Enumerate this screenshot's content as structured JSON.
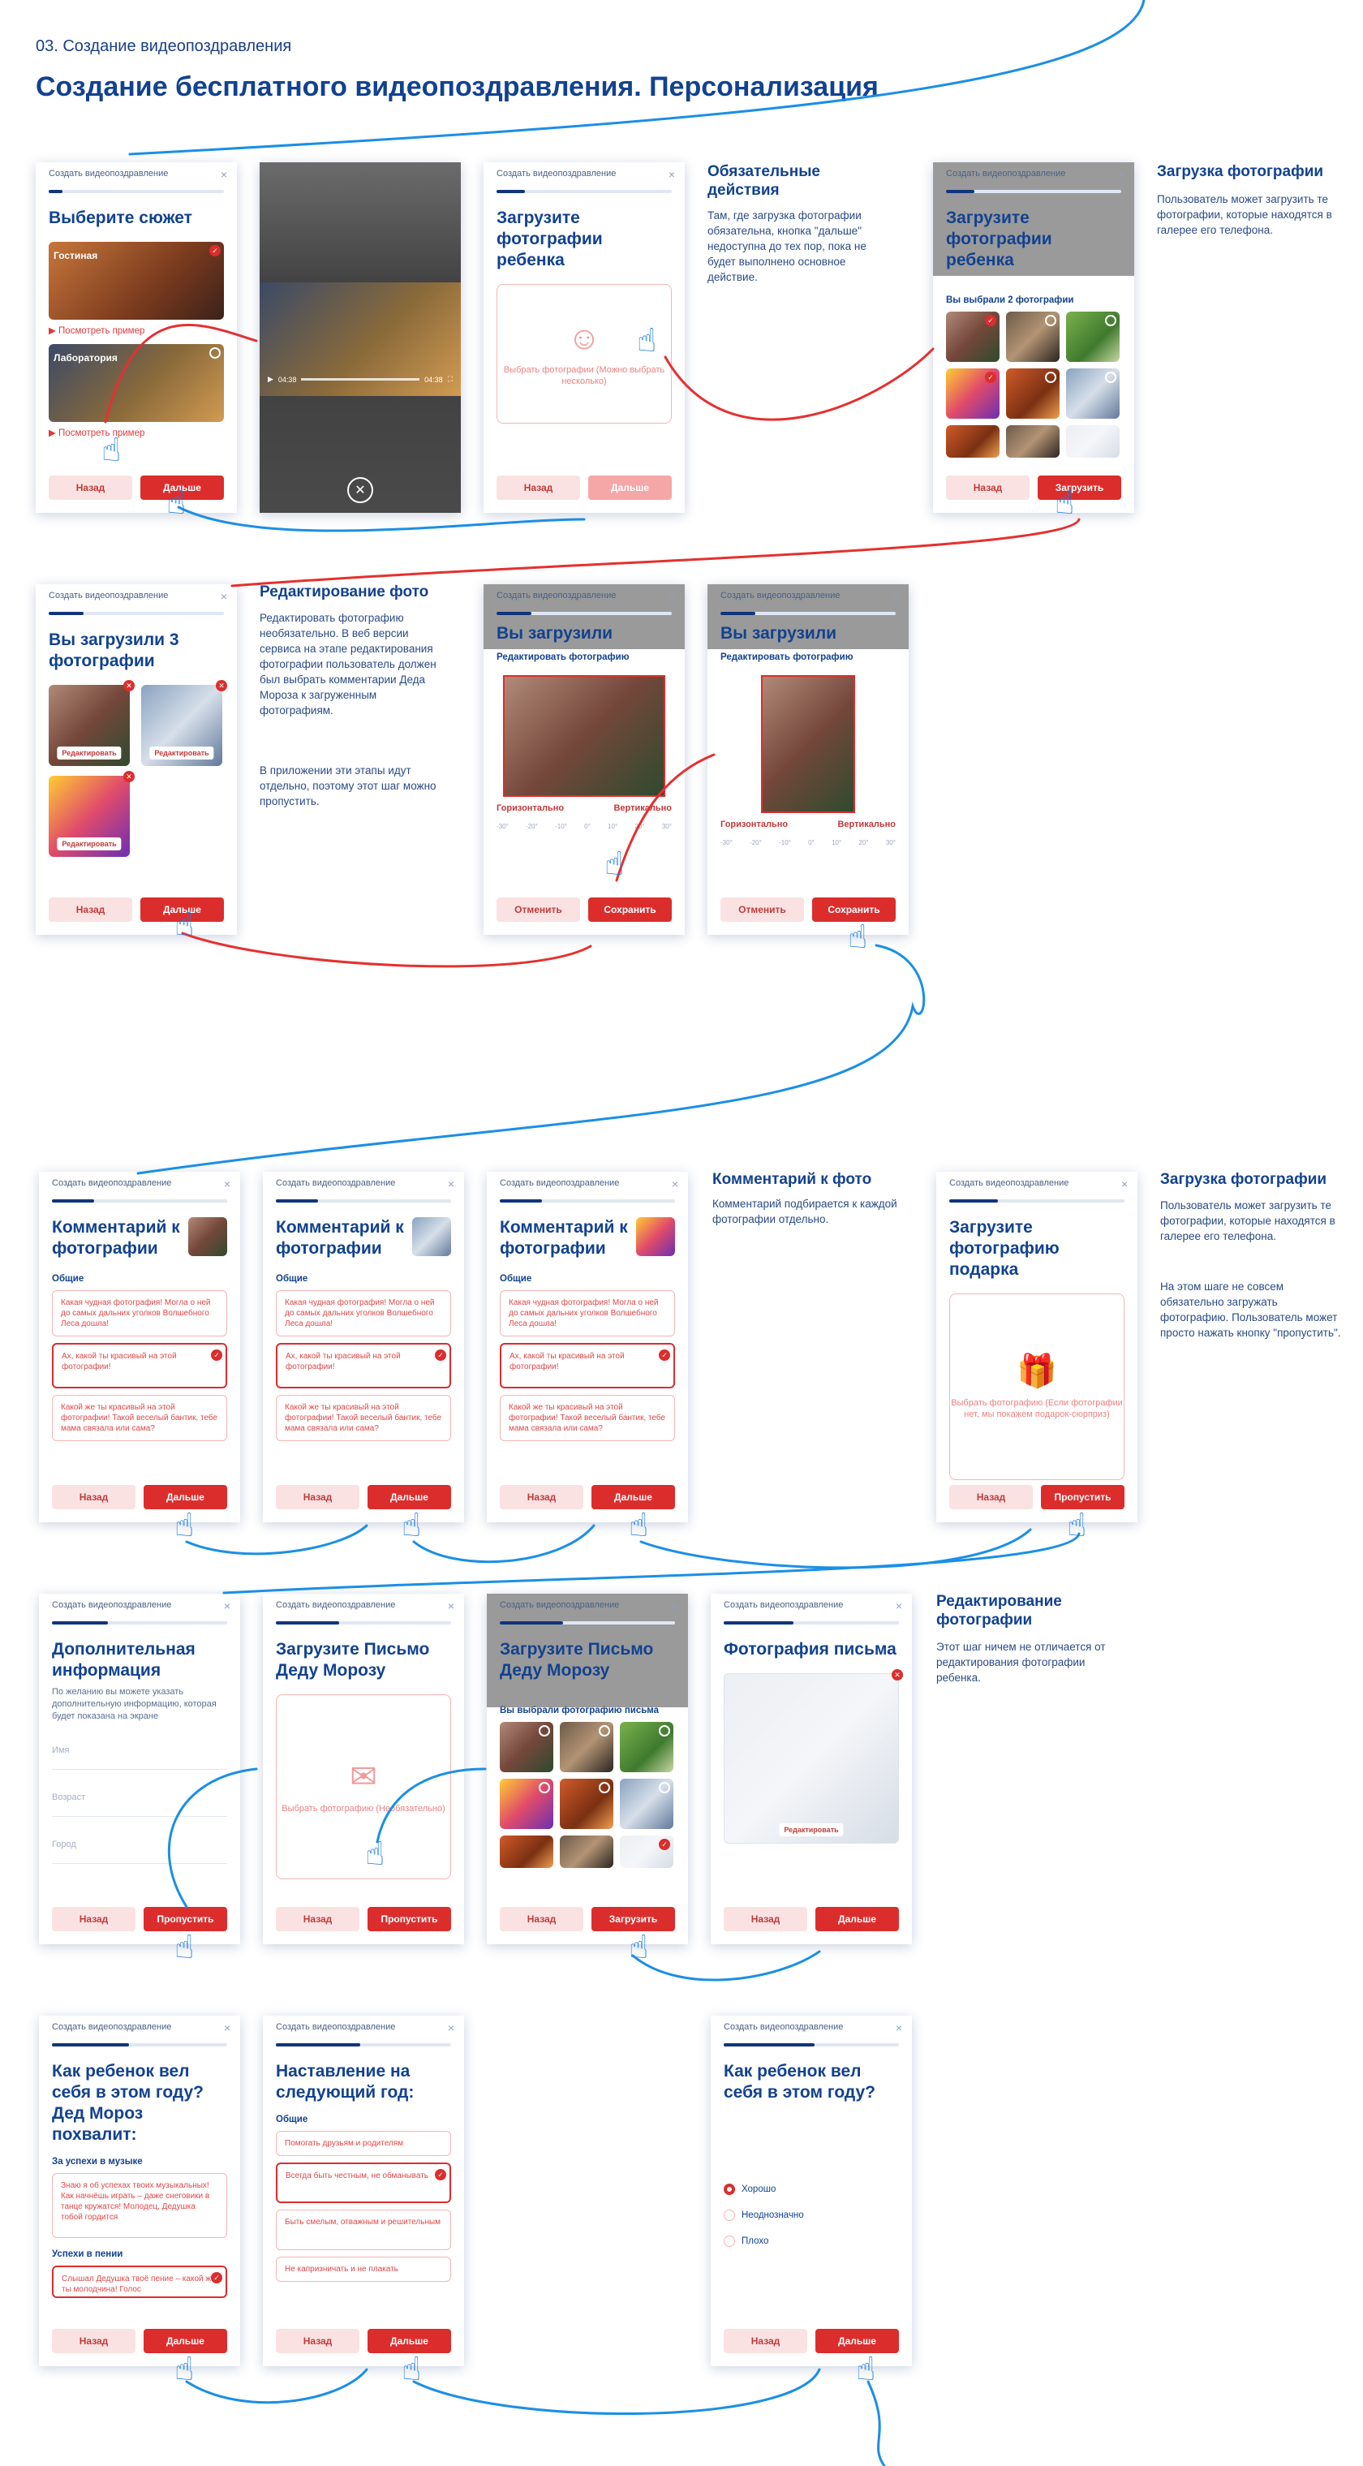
{
  "section_label": "03. Создание видеопоздравления",
  "page_title": "Создание бесплатного видеопоздравления. Персонализация",
  "header": "Создать видеопоздравление",
  "close": "×",
  "buttons": {
    "back": "Назад",
    "next": "Дальше",
    "upload": "Загрузить",
    "skip": "Пропустить",
    "cancel": "Отменить",
    "save": "Сохранить",
    "edit": "Редактировать"
  },
  "screen1": {
    "title": "Выберите сюжет",
    "scene1": "Гостиная",
    "scene2": "Лаборатория",
    "example": "▶ Посмотреть пример"
  },
  "screen2": {
    "time_start": "04:38",
    "time_end": "04:38"
  },
  "screen3": {
    "title": "Загрузите фотографии ребенка",
    "hint": "Выбрать фотографии (Можно выбрать несколько)"
  },
  "note1": {
    "heading": "Обязательные действия",
    "text": "Там, где загрузка фотографии обязательна, кнопка \"дальше\" недоступна до тех пор, пока не будет выполнено основное действие."
  },
  "screen4": {
    "title": "Загрузите фотографии ребенка",
    "picked": "Вы выбрали 2 фотографии"
  },
  "note2": {
    "heading": "Загрузка фотографии",
    "text": "Пользователь может загрузить те фотографии, которые находятся в галерее его телефона."
  },
  "screen5": {
    "title": "Вы загрузили 3 фотографии"
  },
  "note3": {
    "heading": "Редактирование фото",
    "text1": "Редактировать фотографию необязательно. В веб версии сервиса на этапе редактирования фотографии пользователь должен был выбрать комментарии Деда Мороза к загруженным фотографиям.",
    "text2": "В приложении эти этапы идут отдельно, поэтому этот шаг можно пропустить."
  },
  "editor": {
    "title": "Вы загрузили",
    "heading": "Редактировать фотографию",
    "horizontal": "Горизонтально",
    "vertical": "Вертикально",
    "scale": [
      "-30°",
      "-20°",
      "-10°",
      "0°",
      "10°",
      "20°",
      "30°"
    ]
  },
  "comment": {
    "title": "Комментарий к фотографии",
    "group": "Общие",
    "opt1": "Какая чудная фотография! Могла о ней до самых дальних уголков Волшебного Леса дошла!",
    "opt2": "Ах, какой ты красивый на этой фотографии!",
    "opt3": "Какой же ты красивый на этой фотографии! Такой веселый бантик, тебе мама связала или сама?"
  },
  "note4": {
    "heading": "Комментарий к фото",
    "text": "Комментарий подбирается к каждой фотографии отдельно."
  },
  "gift": {
    "title": "Загрузите фотографию подарка",
    "hint": "Выбрать фотографию (Если фотографии нет, мы покажем подарок-сюрприз)"
  },
  "note5": {
    "heading": "Загрузка фотографии",
    "text1": "Пользователь может загрузить те фотографии, которые находятся в галерее его телефона.",
    "text2": "На этом шаге не совсем обязательно загружать фотографию. Пользователь может просто нажать кнопку \"пропустить\"."
  },
  "extra": {
    "title": "Дополнительная информация",
    "desc": "По желанию вы можете указать дополнительную информацию, которая будет показана на экране",
    "name": "Имя",
    "age": "Возраст",
    "city": "Город"
  },
  "letter": {
    "title": "Загрузите Письмо Деду Морозу",
    "hint": "Выбрать фотографию (Необязательно)",
    "picked": "Вы выбрали фотографию письма"
  },
  "letter_photo": {
    "title": "Фотография письма"
  },
  "note6": {
    "heading": "Редактирование фотографии",
    "text": "Этот шаг ничем не отличается от редактирования фотографии ребенка."
  },
  "behave": {
    "title": "Как ребенок вел себя в этом году? Дед Мороз похвалит:",
    "g1": "За успехи в музыке",
    "o1": "Знаю я об успехах твоих музыкальных! Как начнёшь играть – даже снеговики в танце кружатся! Молодец, Дедушка тобой гордится",
    "g2": "Успехи в пении",
    "o2": "Слышал Дедушка твоё пение – какой же ты молодчина! Голос"
  },
  "advice": {
    "title": "Наставление на следующий год:",
    "group": "Общие",
    "o1": "Помогать друзьям и родителям",
    "o2": "Всегда быть честным, не обманывать",
    "o3": "Быть смелым, отважным и решительным",
    "o4": "Не капризничать и не плакать"
  },
  "mood": {
    "title": "Как ребенок вел себя в этом году?",
    "r1": "Хорошо",
    "r2": "Неоднозначно",
    "r3": "Плохо"
  },
  "colors": {
    "brand_blue": "#12428f",
    "accent_red": "#dc2d2d",
    "flow_blue": "#1a8fe6"
  }
}
